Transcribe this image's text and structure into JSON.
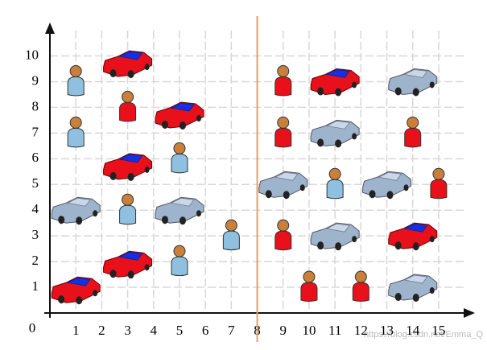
{
  "chart_data": {
    "type": "scatter",
    "origin": 0,
    "xlim": [
      0,
      16.4
    ],
    "ylim": [
      0,
      11.3
    ],
    "xticks": [
      1,
      2,
      3,
      4,
      5,
      6,
      7,
      8,
      9,
      10,
      11,
      12,
      13,
      14,
      15
    ],
    "yticks": [
      1,
      2,
      3,
      4,
      5,
      6,
      7,
      8,
      9,
      10
    ],
    "grid": true,
    "vline": 8,
    "vline_color": "#e8a060",
    "watermark": "https://blog.csdn.net/Emma_Q",
    "series": [
      {
        "shape": "car",
        "color": "#e8101a",
        "x": [
          3,
          5,
          3,
          3,
          1,
          11,
          14
        ],
        "y": [
          9.7,
          7.7,
          5.7,
          1.9,
          0.9,
          9,
          3
        ]
      },
      {
        "shape": "car",
        "color": "#9db4cc",
        "x": [
          1,
          5,
          11,
          14,
          9,
          13,
          11,
          14
        ],
        "y": [
          4,
          4,
          7,
          9,
          5,
          5,
          3,
          1
        ]
      },
      {
        "shape": "person",
        "color": "#e8101a",
        "x": [
          3,
          9,
          9,
          14,
          15,
          9,
          10,
          12
        ],
        "y": [
          8,
          9,
          7,
          7,
          5,
          3,
          1,
          1
        ]
      },
      {
        "shape": "person",
        "color": "#8fc0e0",
        "x": [
          1,
          1,
          5,
          3,
          7,
          5,
          11
        ],
        "y": [
          9,
          7,
          6,
          4,
          3,
          2,
          5
        ]
      }
    ]
  }
}
